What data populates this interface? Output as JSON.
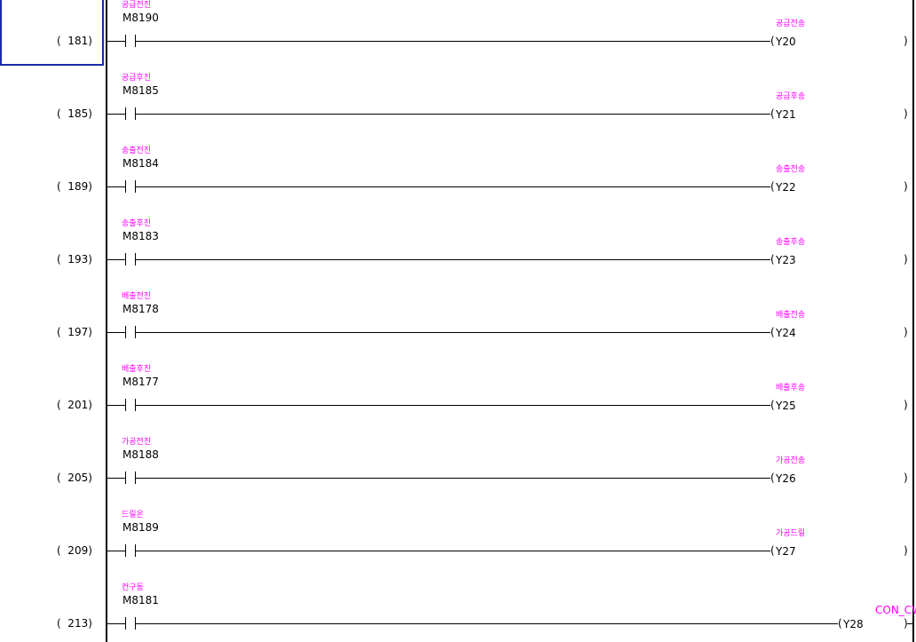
{
  "colors": {
    "comment": "#ff00ff",
    "device": "#000000",
    "cursor": "#1a2aa8",
    "rail": "#000000"
  },
  "rungs": [
    {
      "step": "(  181)",
      "contact_comment": "공급전진",
      "contact": "M8190",
      "coil_comment": "공급전송",
      "coil": "Y20"
    },
    {
      "step": "(  185)",
      "contact_comment": "공급후진",
      "contact": "M8185",
      "coil_comment": "공급후송",
      "coil": "Y21"
    },
    {
      "step": "(  189)",
      "contact_comment": "송출전진",
      "contact": "M8184",
      "coil_comment": "송출전송",
      "coil": "Y22"
    },
    {
      "step": "(  193)",
      "contact_comment": "송출후진",
      "contact": "M8183",
      "coil_comment": "송출후송",
      "coil": "Y23"
    },
    {
      "step": "(  197)",
      "contact_comment": "배출전진",
      "contact": "M8178",
      "coil_comment": "배출전송",
      "coil": "Y24"
    },
    {
      "step": "(  201)",
      "contact_comment": "배출후진",
      "contact": "M8177",
      "coil_comment": "배출후송",
      "coil": "Y25"
    },
    {
      "step": "(  205)",
      "contact_comment": "가공전진",
      "contact": "M8188",
      "coil_comment": "가공전송",
      "coil": "Y26"
    },
    {
      "step": "(  209)",
      "contact_comment": "드릴온",
      "contact": "M8189",
      "coil_comment": "가공드릴",
      "coil": "Y27"
    },
    {
      "step": "(  213)",
      "contact_comment": "컨구동",
      "contact": "M8181",
      "coil_comment": "CON_CW",
      "coil": "Y28"
    }
  ]
}
